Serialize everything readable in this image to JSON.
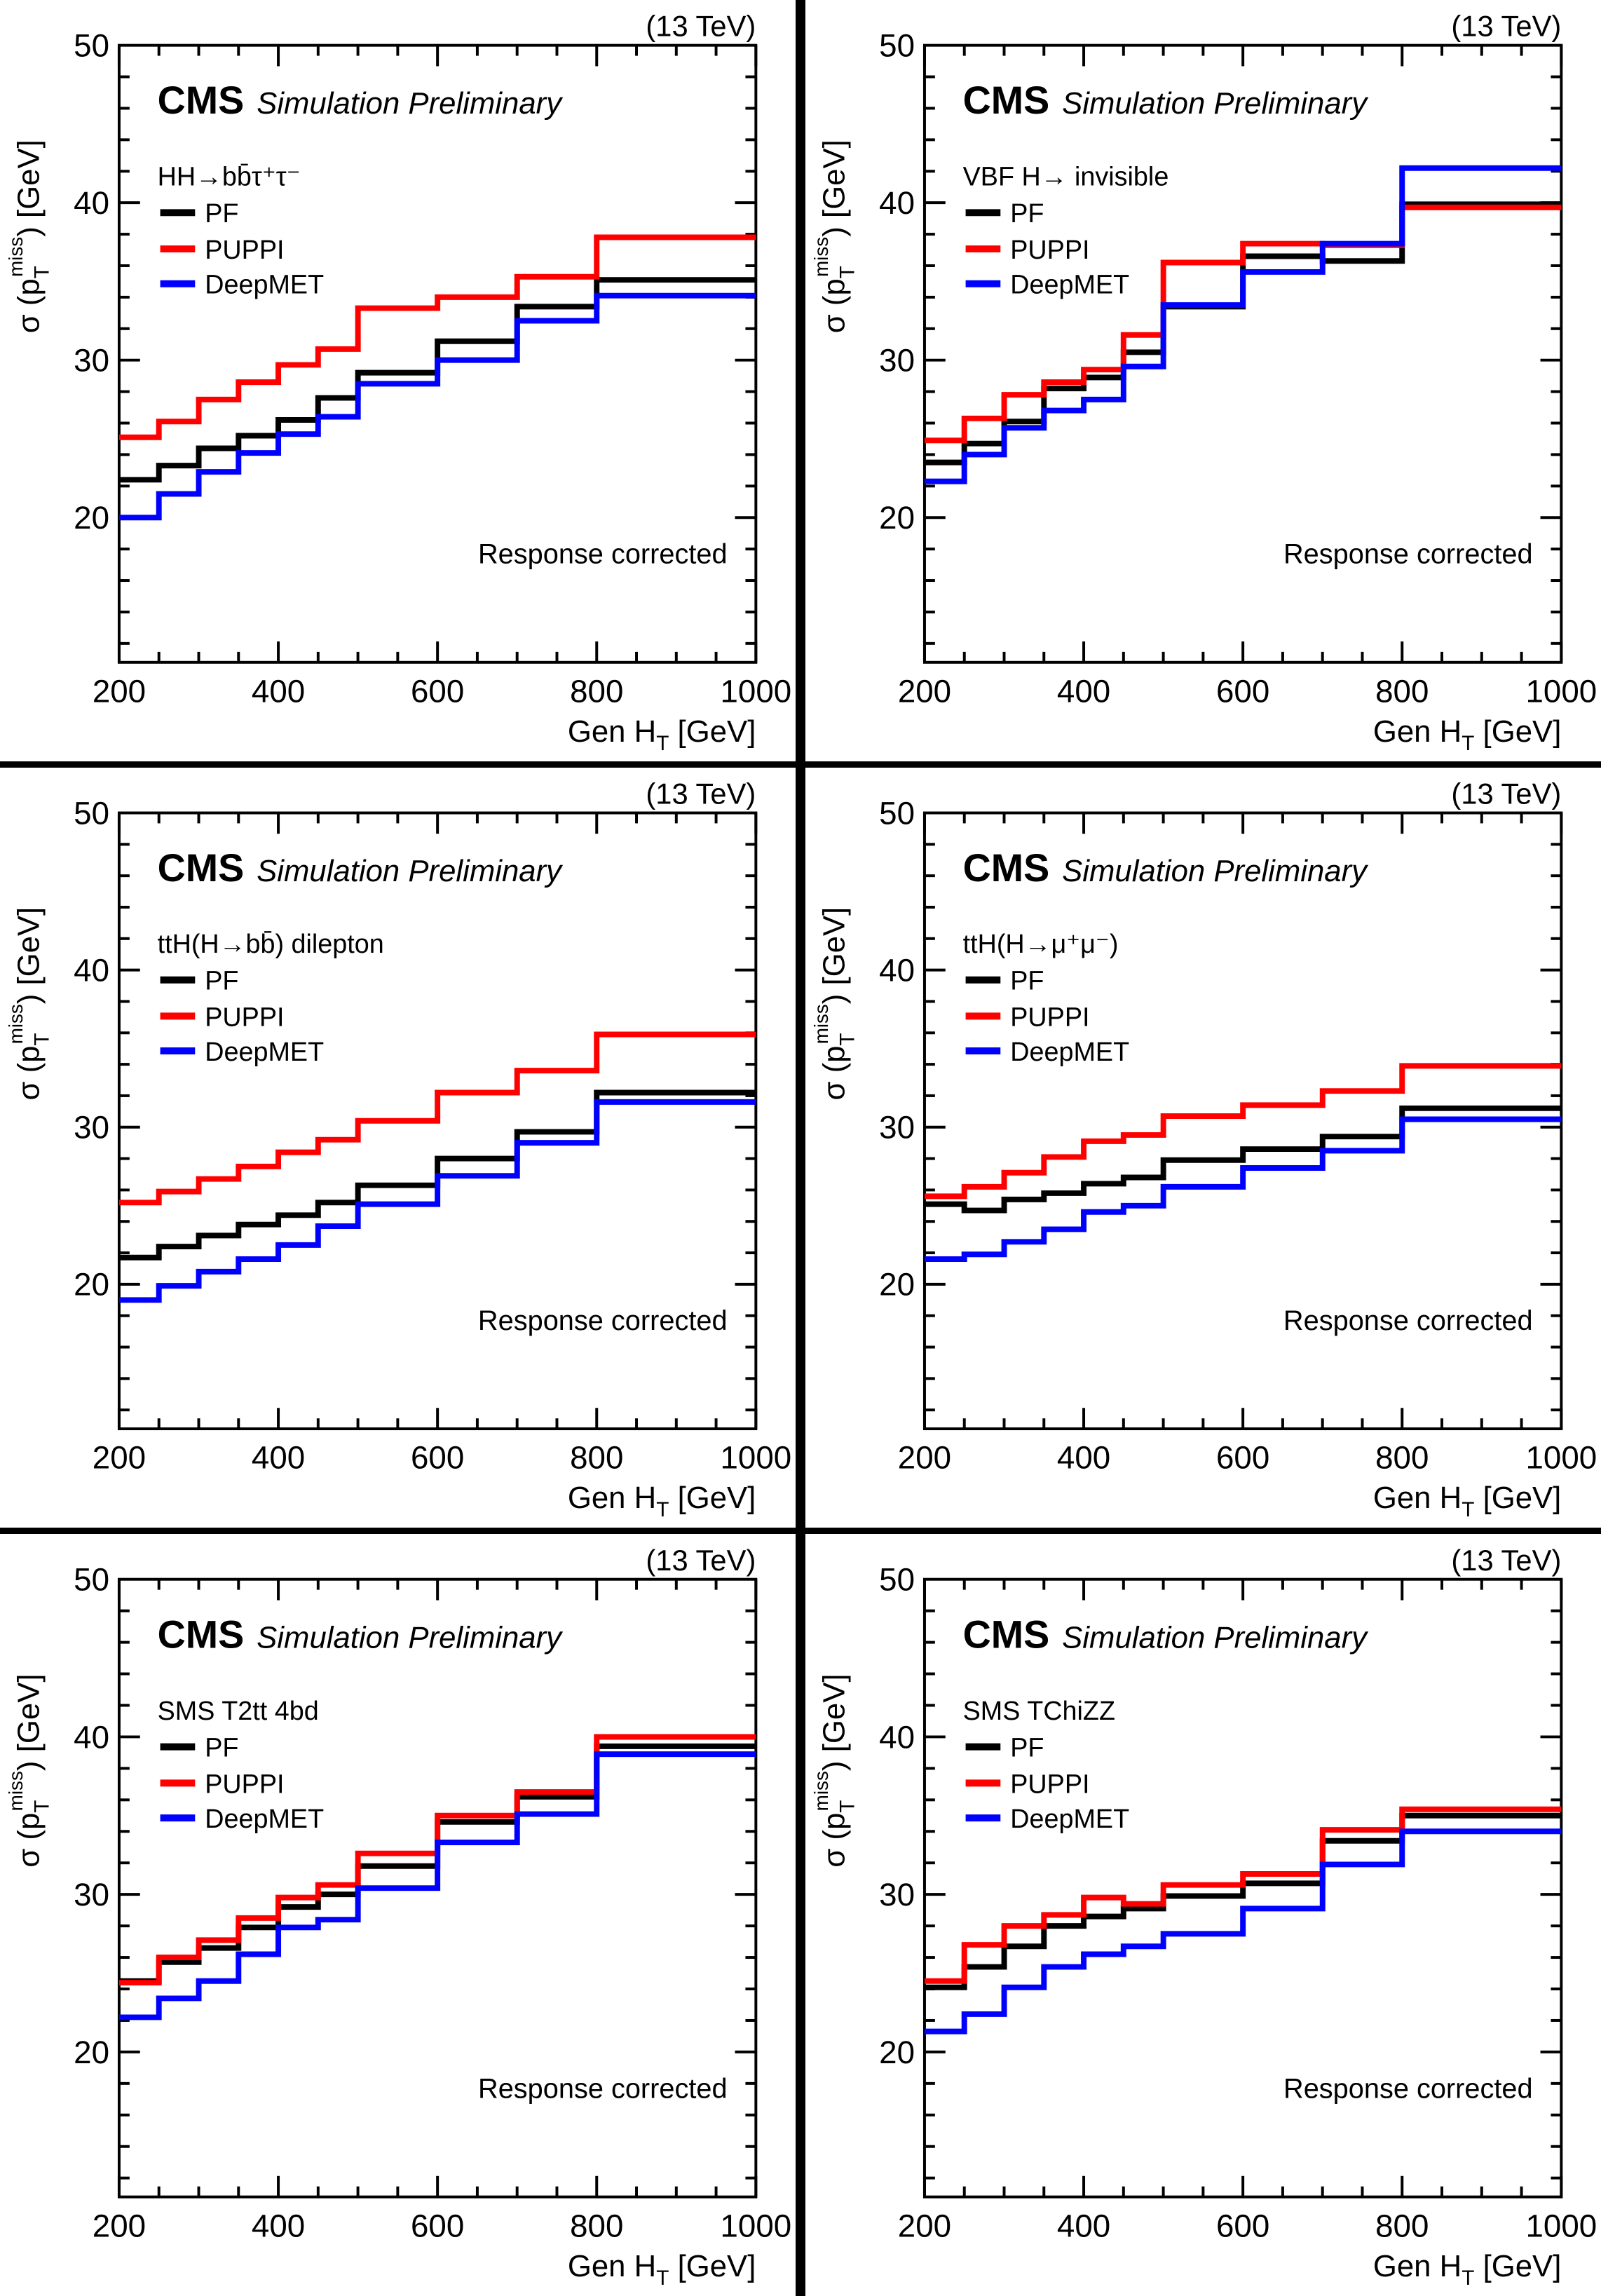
{
  "figure": {
    "energy_label": "(13 TeV)",
    "experiment": "CMS",
    "subtitle": "Simulation Preliminary",
    "footnote": "Response corrected"
  },
  "colors": {
    "pf": "#000000",
    "puppi": "#ff0000",
    "deepmet": "#0000ff",
    "frame": "#000000",
    "separator": "#000000",
    "background": "#ffffff"
  },
  "legend": [
    {
      "key": "pf",
      "label": "PF"
    },
    {
      "key": "puppi",
      "label": "PUPPI"
    },
    {
      "key": "deepmet",
      "label": "DeepMET"
    }
  ],
  "axes": {
    "x": {
      "label_pre": "Gen H",
      "label_sub": "T",
      "label_post": " [GeV]",
      "plain": "Gen H_T [GeV]",
      "min": 200,
      "max": 1000,
      "major_ticks": [
        200,
        400,
        600,
        800,
        1000
      ],
      "minor_step": 50
    },
    "y": {
      "label_pre": "σ (p",
      "label_sub": "T",
      "label_sup": "miss",
      "label_post": ") [GeV]",
      "plain": "σ (p_T^miss) [GeV]",
      "min": 10.8,
      "max": 50,
      "major_ticks": [
        20,
        30,
        40,
        50
      ],
      "minor_step": 2
    }
  },
  "chart_data": {
    "type": "step-line",
    "grid": "off",
    "legend_position": "upper-left",
    "bin_edges": [
      200,
      250,
      300,
      350,
      400,
      450,
      500,
      600,
      700,
      800,
      1000
    ],
    "panels": [
      {
        "process": "HH→bb̄τ⁺τ⁻",
        "series": [
          {
            "name": "PF",
            "color_key": "pf",
            "values": [
              22.4,
              23.3,
              24.4,
              25.2,
              26.2,
              27.6,
              29.2,
              31.2,
              33.4,
              35.1
            ]
          },
          {
            "name": "PUPPI",
            "color_key": "puppi",
            "values": [
              25.1,
              26.1,
              27.5,
              28.6,
              29.7,
              30.7,
              33.3,
              34.0,
              35.3,
              37.8
            ]
          },
          {
            "name": "DeepMET",
            "color_key": "deepmet",
            "values": [
              20.0,
              21.5,
              22.9,
              24.1,
              25.3,
              26.4,
              28.5,
              30.0,
              32.5,
              34.1
            ]
          }
        ]
      },
      {
        "process": "VBF H→ invisible",
        "series": [
          {
            "name": "PF",
            "color_key": "pf",
            "values": [
              23.5,
              24.7,
              26.1,
              28.2,
              28.9,
              30.5,
              33.4,
              36.6,
              36.3,
              39.9
            ]
          },
          {
            "name": "PUPPI",
            "color_key": "puppi",
            "values": [
              24.9,
              26.3,
              27.8,
              28.6,
              29.4,
              31.6,
              36.2,
              37.4,
              37.3,
              39.7
            ]
          },
          {
            "name": "DeepMET",
            "color_key": "deepmet",
            "values": [
              22.3,
              24.0,
              25.7,
              26.8,
              27.5,
              29.6,
              33.5,
              35.6,
              37.4,
              42.2
            ]
          }
        ]
      },
      {
        "process": "ttH(H→bb̄) dilepton",
        "series": [
          {
            "name": "PF",
            "color_key": "pf",
            "values": [
              21.7,
              22.4,
              23.1,
              23.8,
              24.4,
              25.2,
              26.3,
              28.0,
              29.7,
              32.2
            ]
          },
          {
            "name": "PUPPI",
            "color_key": "puppi",
            "values": [
              25.2,
              25.9,
              26.7,
              27.5,
              28.4,
              29.2,
              30.4,
              32.2,
              33.6,
              35.9
            ]
          },
          {
            "name": "DeepMET",
            "color_key": "deepmet",
            "values": [
              19.0,
              19.9,
              20.8,
              21.6,
              22.5,
              23.7,
              25.1,
              26.9,
              29.0,
              31.6
            ]
          }
        ]
      },
      {
        "process": "ttH(H→μ⁺μ⁻)",
        "series": [
          {
            "name": "PF",
            "color_key": "pf",
            "values": [
              25.1,
              24.7,
              25.4,
              25.8,
              26.4,
              26.8,
              27.9,
              28.6,
              29.4,
              31.2
            ]
          },
          {
            "name": "PUPPI",
            "color_key": "puppi",
            "values": [
              25.6,
              26.2,
              27.1,
              28.1,
              29.1,
              29.5,
              30.7,
              31.4,
              32.3,
              33.9
            ]
          },
          {
            "name": "DeepMET",
            "color_key": "deepmet",
            "values": [
              21.6,
              21.9,
              22.7,
              23.5,
              24.6,
              25.0,
              26.2,
              27.4,
              28.5,
              30.5
            ]
          }
        ]
      },
      {
        "process": "SMS T2tt 4bd",
        "series": [
          {
            "name": "PF",
            "color_key": "pf",
            "values": [
              24.5,
              25.7,
              26.6,
              27.9,
              29.2,
              30.0,
              31.8,
              34.6,
              36.2,
              39.4
            ]
          },
          {
            "name": "PUPPI",
            "color_key": "puppi",
            "values": [
              24.4,
              26.0,
              27.1,
              28.5,
              29.8,
              30.6,
              32.6,
              35.0,
              36.5,
              40.0
            ]
          },
          {
            "name": "DeepMET",
            "color_key": "deepmet",
            "values": [
              22.2,
              23.4,
              24.5,
              26.2,
              27.9,
              28.4,
              30.4,
              33.3,
              35.1,
              38.9
            ]
          }
        ]
      },
      {
        "process": "SMS TChiZZ",
        "series": [
          {
            "name": "PF",
            "color_key": "pf",
            "values": [
              24.1,
              25.4,
              26.7,
              28.0,
              28.6,
              29.1,
              29.9,
              30.7,
              33.4,
              35.0
            ]
          },
          {
            "name": "PUPPI",
            "color_key": "puppi",
            "values": [
              24.5,
              26.8,
              28.0,
              28.7,
              29.8,
              29.4,
              30.6,
              31.3,
              34.1,
              35.4
            ]
          },
          {
            "name": "DeepMET",
            "color_key": "deepmet",
            "values": [
              21.3,
              22.4,
              24.1,
              25.4,
              26.2,
              26.7,
              27.5,
              29.1,
              31.9,
              34.0
            ]
          }
        ]
      }
    ]
  }
}
